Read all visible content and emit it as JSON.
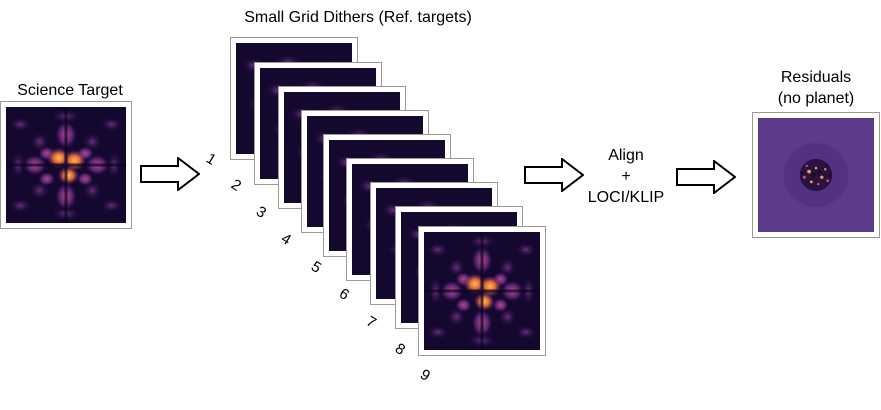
{
  "science_target": {
    "title": "Science Target"
  },
  "ref_targets": {
    "title": "Small Grid Dithers (Ref. targets)",
    "numbers": [
      "1",
      "2",
      "3",
      "4",
      "5",
      "6",
      "7",
      "8",
      "9"
    ]
  },
  "process": {
    "line1": "Align",
    "line2": "+",
    "line3": "LOCI/KLIP"
  },
  "residuals": {
    "line1": "Residuals",
    "line2": "(no planet)"
  },
  "colors": {
    "psf_dark": "#14082e",
    "psf_mid": "#6b2a7e",
    "psf_bright": "#f6a63a",
    "residual_bg": "#5c3a8c"
  }
}
